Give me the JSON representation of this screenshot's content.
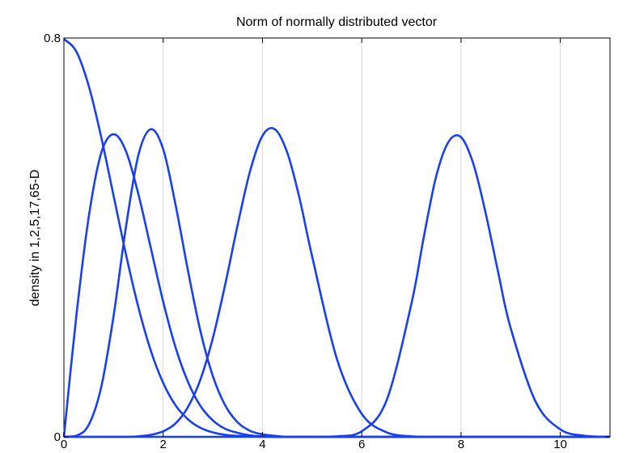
{
  "chart_data": {
    "type": "line",
    "title": "Norm of normally distributed vector",
    "xlabel": "",
    "ylabel": "density in 1,2,5,17,65-D",
    "xlim": [
      0,
      11
    ],
    "ylim": [
      0,
      0.8
    ],
    "x_ticks": [
      0,
      2,
      4,
      6,
      8,
      10
    ],
    "y_ticks": [
      0,
      0.8
    ],
    "x_tick_labels": [
      "0",
      "2",
      "4",
      "6",
      "8",
      "10"
    ],
    "y_tick_labels": [
      "0",
      "0.8"
    ],
    "grid": "vertical",
    "line_color": "#1a3ff0",
    "x": [
      0,
      0.25,
      0.5,
      0.75,
      1,
      1.25,
      1.5,
      1.75,
      2,
      2.25,
      2.5,
      2.75,
      3,
      3.25,
      3.5,
      3.75,
      4,
      4.25,
      4.5,
      4.75,
      5,
      5.5,
      6,
      6.5,
      7,
      7.25,
      7.5,
      7.75,
      8,
      8.25,
      8.5,
      8.75,
      9,
      9.5,
      10,
      10.5,
      11
    ],
    "series": [
      {
        "values": [
          0.798,
          0.773,
          0.704,
          0.602,
          0.484,
          0.366,
          0.26,
          0.173,
          0.108,
          0.063,
          0.035,
          0.018,
          0.009,
          0.004,
          0.002,
          0.001,
          0.0,
          0.0,
          0.0,
          0.0,
          0.0,
          0.0,
          0.0,
          0.0,
          0.0,
          0.0,
          0.0,
          0.0,
          0.0,
          0.0,
          0.0,
          0.0,
          0.0,
          0.0,
          0.0,
          0.0,
          0.0
        ]
      },
      {
        "values": [
          0.0,
          0.242,
          0.441,
          0.569,
          0.607,
          0.573,
          0.487,
          0.379,
          0.271,
          0.179,
          0.11,
          0.062,
          0.033,
          0.016,
          0.008,
          0.003,
          0.001,
          0.0,
          0.0,
          0.0,
          0.0,
          0.0,
          0.0,
          0.0,
          0.0,
          0.0,
          0.0,
          0.0,
          0.0,
          0.0,
          0.0,
          0.0,
          0.0,
          0.0,
          0.0,
          0.0,
          0.0
        ]
      },
      {
        "values": [
          0.0,
          0.002,
          0.024,
          0.099,
          0.242,
          0.421,
          0.565,
          0.617,
          0.577,
          0.465,
          0.333,
          0.212,
          0.122,
          0.063,
          0.029,
          0.012,
          0.005,
          0.002,
          0.0,
          0.0,
          0.0,
          0.0,
          0.0,
          0.0,
          0.0,
          0.0,
          0.0,
          0.0,
          0.0,
          0.0,
          0.0,
          0.0,
          0.0,
          0.0,
          0.0,
          0.0,
          0.0
        ]
      },
      {
        "values": [
          0.0,
          0.0,
          0.0,
          0.0,
          0.0,
          0.0,
          0.001,
          0.004,
          0.011,
          0.027,
          0.06,
          0.115,
          0.198,
          0.306,
          0.425,
          0.533,
          0.604,
          0.617,
          0.57,
          0.477,
          0.362,
          0.156,
          0.046,
          0.009,
          0.001,
          0.0,
          0.0,
          0.0,
          0.0,
          0.0,
          0.0,
          0.0,
          0.0,
          0.0,
          0.0,
          0.0,
          0.0
        ]
      },
      {
        "values": [
          0.0,
          0.0,
          0.0,
          0.0,
          0.0,
          0.0,
          0.0,
          0.0,
          0.0,
          0.0,
          0.0,
          0.0,
          0.0,
          0.0,
          0.0,
          0.0,
          0.0,
          0.0,
          0.0,
          0.0,
          0.0,
          0.001,
          0.011,
          0.073,
          0.267,
          0.401,
          0.523,
          0.592,
          0.601,
          0.547,
          0.447,
          0.329,
          0.218,
          0.071,
          0.015,
          0.002,
          0.0
        ]
      }
    ]
  }
}
